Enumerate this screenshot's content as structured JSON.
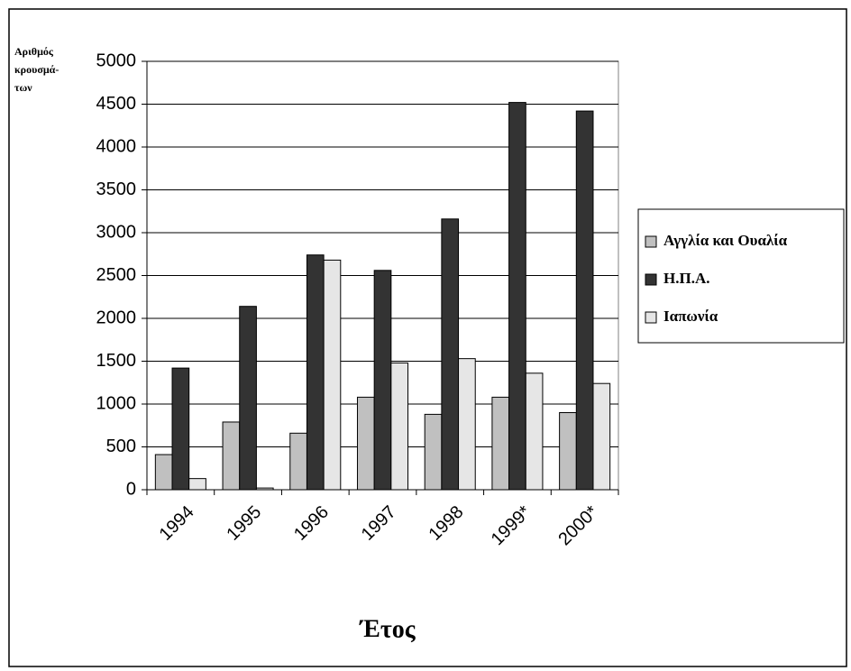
{
  "chart_data": {
    "type": "bar",
    "y_label": [
      "Αριθμός",
      "κρουσμά-",
      "των"
    ],
    "x_label": "Έτος",
    "categories": [
      "1994",
      "1995",
      "1996",
      "1997",
      "1998",
      "1999*",
      "2000*"
    ],
    "series": [
      {
        "name": "Αγγλία και Ουαλία",
        "color": "#c0c0c0",
        "values": [
          410,
          790,
          660,
          1080,
          880,
          1080,
          900
        ]
      },
      {
        "name": "Η.Π.Α.",
        "color": "#333333",
        "values": [
          1420,
          2140,
          2740,
          2560,
          3160,
          4520,
          4420
        ]
      },
      {
        "name": "Ιαπωνία",
        "color": "#e6e6e6",
        "values": [
          130,
          20,
          2680,
          1480,
          1530,
          1360,
          1240
        ]
      }
    ],
    "ylim": [
      0,
      5000
    ],
    "yticks": [
      0,
      500,
      1000,
      1500,
      2000,
      2500,
      3000,
      3500,
      4000,
      4500,
      5000
    ],
    "grid": true,
    "legend": "right"
  }
}
